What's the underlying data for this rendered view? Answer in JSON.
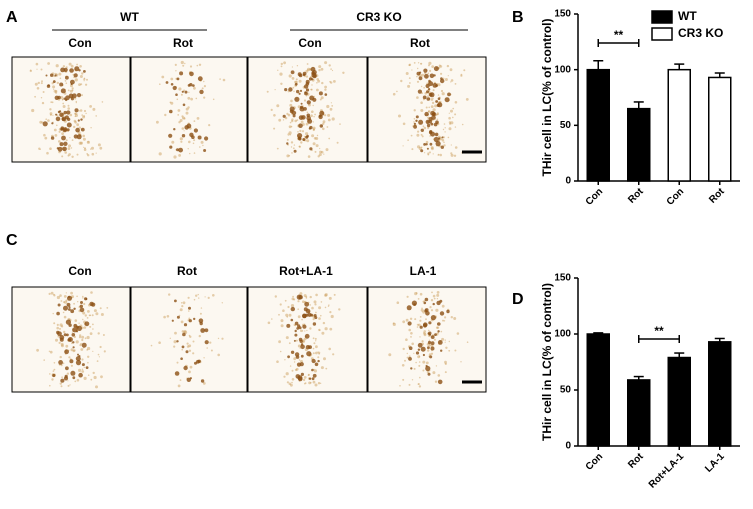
{
  "figure": {
    "panel_a": {
      "letter": "A",
      "groups": [
        {
          "name": "WT",
          "conditions": [
            "Con",
            "Rot"
          ]
        },
        {
          "name": "CR3 KO",
          "conditions": [
            "Con",
            "Rot"
          ]
        }
      ]
    },
    "panel_c": {
      "letter": "C",
      "conditions": [
        "Con",
        "Rot",
        "Rot+LA-1",
        "LA-1"
      ]
    }
  },
  "chart_data": [
    {
      "type": "bar",
      "panel": "B",
      "y_label": "THir cell in LC(% of control)",
      "categories": [
        "Con",
        "Rot",
        "Con",
        "Rot"
      ],
      "series": [
        {
          "name": "WT",
          "color": "#000000",
          "values": [
            100,
            65,
            null,
            null
          ],
          "errors": [
            8,
            6,
            null,
            null
          ]
        },
        {
          "name": "CR3 KO",
          "color": "#ffffff",
          "values": [
            null,
            null,
            100,
            93
          ],
          "errors": [
            null,
            null,
            5,
            4
          ]
        }
      ],
      "ylim": [
        0,
        150
      ],
      "yticks": [
        0,
        50,
        100,
        150
      ],
      "significance": "**",
      "legend": "upper right"
    },
    {
      "type": "bar",
      "panel": "D",
      "y_label": "THir cell in LC(% of control)",
      "categories": [
        "Con",
        "Rot",
        "Rot+LA-1",
        "LA-1"
      ],
      "color": "#000000",
      "values": [
        100,
        59,
        79,
        93
      ],
      "errors": [
        1,
        3,
        4,
        3
      ],
      "ylim": [
        0,
        150
      ],
      "yticks": [
        0,
        50,
        100,
        150
      ],
      "significance": "**"
    }
  ]
}
